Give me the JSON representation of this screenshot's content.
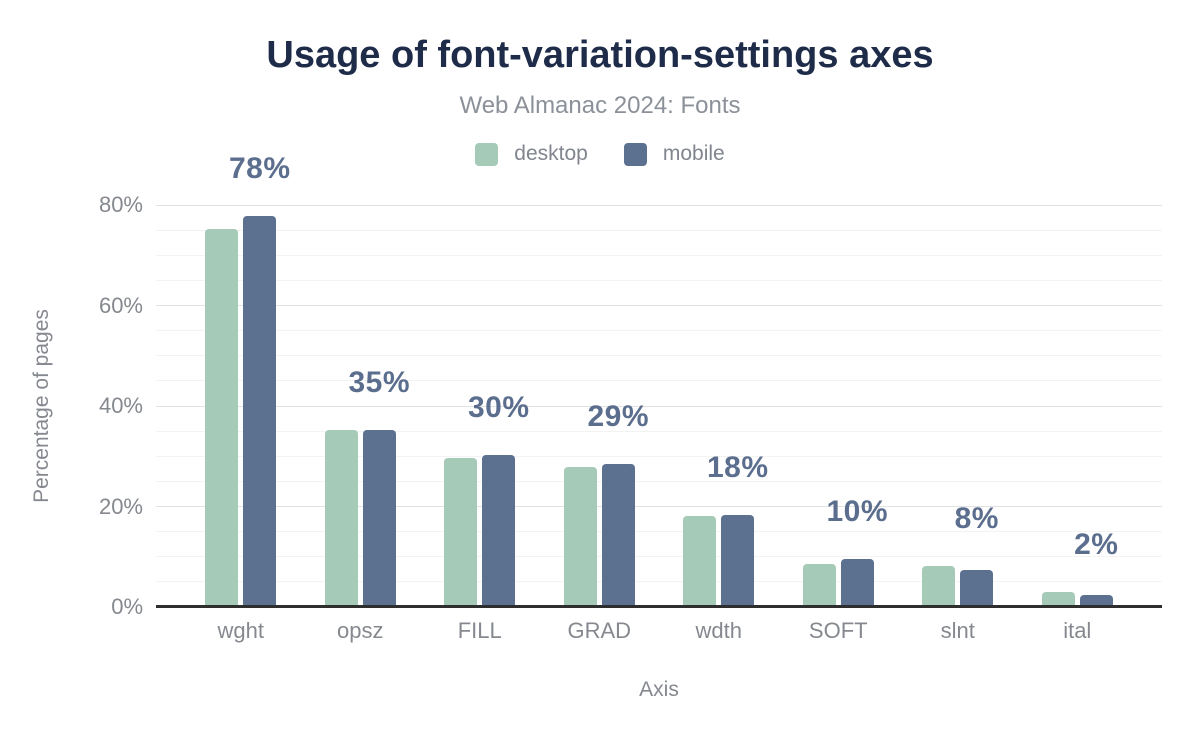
{
  "header": {
    "title": "Usage of font-variation-settings axes",
    "subtitle": "Web Almanac 2024: Fonts"
  },
  "axes": {
    "x_title": "Axis",
    "y_title": "Percentage of pages",
    "y_ticks": [
      {
        "value": 0,
        "label": "0%"
      },
      {
        "value": 20,
        "label": "20%"
      },
      {
        "value": 40,
        "label": "40%"
      },
      {
        "value": 60,
        "label": "60%"
      },
      {
        "value": 80,
        "label": "80%"
      }
    ]
  },
  "legend": {
    "items": [
      {
        "name": "desktop",
        "label": "desktop",
        "color": "#a6cab8"
      },
      {
        "name": "mobile",
        "label": "mobile",
        "color": "#5c708f"
      }
    ]
  },
  "colors": {
    "title": "#1e2b49",
    "subtitle": "#8b9099",
    "axis_text": "#85898f",
    "bar_value_label": "#5b6e8e",
    "axis_line": "#2e2e2e",
    "grid_major": "#e2e2e2",
    "grid_minor": "#f3f3f3",
    "desktop_bar": "#a6cab8",
    "mobile_bar": "#5c708f"
  },
  "chart_data": {
    "type": "bar",
    "title": "Usage of font-variation-settings axes",
    "subtitle": "Web Almanac 2024: Fonts",
    "xlabel": "Axis",
    "ylabel": "Percentage of pages",
    "categories": [
      "wght",
      "opsz",
      "FILL",
      "GRAD",
      "wdth",
      "SOFT",
      "slnt",
      "ital"
    ],
    "series": [
      {
        "name": "desktop",
        "color": "#a6cab8",
        "values": [
          75.3,
          35.2,
          29.7,
          27.8,
          18.1,
          8.6,
          8.2,
          3.0
        ]
      },
      {
        "name": "mobile",
        "color": "#5c708f",
        "values": [
          77.9,
          35.3,
          30.2,
          28.5,
          18.3,
          9.6,
          7.4,
          2.3
        ]
      }
    ],
    "bar_labels": [
      "78%",
      "35%",
      "30%",
      "29%",
      "18%",
      "10%",
      "8%",
      "2%"
    ],
    "ylim": [
      0,
      80
    ],
    "ytick_step": 20,
    "grid_minor_step": 5,
    "grid": "on",
    "legend_position": "top-center"
  }
}
